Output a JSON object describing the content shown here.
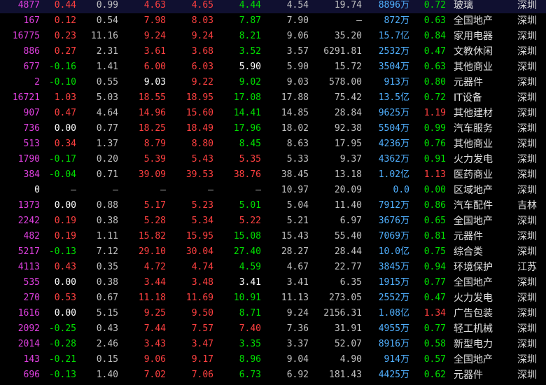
{
  "rows": [
    {
      "vol": "4877",
      "chg": "0.44",
      "turn": "0.99",
      "open": "4.63",
      "high": "4.65",
      "low": "4.44",
      "prev": "4.54",
      "pe": "19.74",
      "cap": "8896万",
      "ratio": "0.72",
      "industry": "玻璃",
      "region": "深圳"
    },
    {
      "vol": "167",
      "chg": "0.12",
      "turn": "0.54",
      "open": "7.98",
      "high": "8.03",
      "low": "7.87",
      "prev": "7.90",
      "pe": "–",
      "cap": "872万",
      "ratio": "0.63",
      "industry": "全国地产",
      "region": "深圳"
    },
    {
      "vol": "16775",
      "chg": "0.23",
      "turn": "11.16",
      "open": "9.24",
      "high": "9.24",
      "low": "8.21",
      "prev": "9.06",
      "pe": "35.20",
      "cap": "15.7亿",
      "ratio": "0.84",
      "industry": "家用电器",
      "region": "深圳"
    },
    {
      "vol": "886",
      "chg": "0.27",
      "turn": "2.31",
      "open": "3.61",
      "high": "3.68",
      "low": "3.52",
      "prev": "3.57",
      "pe": "6291.81",
      "cap": "2532万",
      "ratio": "0.47",
      "industry": "文教休闲",
      "region": "深圳"
    },
    {
      "vol": "677",
      "chg": "-0.16",
      "turn": "1.41",
      "open": "6.00",
      "high": "6.03",
      "low": "5.90",
      "prev": "5.90",
      "pe": "15.72",
      "cap": "3504万",
      "ratio": "0.63",
      "industry": "其他商业",
      "region": "深圳"
    },
    {
      "vol": "2",
      "chg": "-0.10",
      "turn": "0.55",
      "open": "9.03",
      "high": "9.22",
      "low": "9.02",
      "prev": "9.03",
      "pe": "578.00",
      "cap": "913万",
      "ratio": "0.80",
      "industry": "元器件",
      "region": "深圳"
    },
    {
      "vol": "16721",
      "chg": "1.03",
      "turn": "5.03",
      "open": "18.55",
      "high": "18.95",
      "low": "17.08",
      "prev": "17.88",
      "pe": "75.42",
      "cap": "13.5亿",
      "ratio": "0.72",
      "industry": "IT设备",
      "region": "深圳"
    },
    {
      "vol": "907",
      "chg": "0.47",
      "turn": "4.64",
      "open": "14.96",
      "high": "15.60",
      "low": "14.41",
      "prev": "14.85",
      "pe": "28.84",
      "cap": "9625万",
      "ratio": "1.19",
      "industry": "其他建材",
      "region": "深圳"
    },
    {
      "vol": "736",
      "chg": "0.00",
      "turn": "0.77",
      "open": "18.25",
      "high": "18.49",
      "low": "17.96",
      "prev": "18.02",
      "pe": "92.38",
      "cap": "5504万",
      "ratio": "0.99",
      "industry": "汽车服务",
      "region": "深圳"
    },
    {
      "vol": "513",
      "chg": "0.34",
      "turn": "1.37",
      "open": "8.79",
      "high": "8.80",
      "low": "8.45",
      "prev": "8.63",
      "pe": "17.95",
      "cap": "4236万",
      "ratio": "0.76",
      "industry": "其他商业",
      "region": "深圳"
    },
    {
      "vol": "1790",
      "chg": "-0.17",
      "turn": "0.20",
      "open": "5.39",
      "high": "5.43",
      "low": "5.35",
      "prev": "5.33",
      "pe": "9.37",
      "cap": "4362万",
      "ratio": "0.91",
      "industry": "火力发电",
      "region": "深圳"
    },
    {
      "vol": "384",
      "chg": "-0.04",
      "turn": "0.71",
      "open": "39.09",
      "high": "39.53",
      "low": "38.76",
      "prev": "38.45",
      "pe": "13.18",
      "cap": "1.02亿",
      "ratio": "1.13",
      "industry": "医药商业",
      "region": "深圳"
    },
    {
      "vol": "0",
      "chg": "–",
      "turn": "–",
      "open": "–",
      "high": "–",
      "low": "–",
      "prev": "10.97",
      "pe": "20.09",
      "cap": "0.0",
      "ratio": "0.00",
      "industry": "区域地产",
      "region": "深圳"
    },
    {
      "vol": "1373",
      "chg": "0.00",
      "turn": "0.88",
      "open": "5.17",
      "high": "5.23",
      "low": "5.01",
      "prev": "5.04",
      "pe": "11.40",
      "cap": "7912万",
      "ratio": "0.86",
      "industry": "汽车配件",
      "region": "吉林"
    },
    {
      "vol": "2242",
      "chg": "0.19",
      "turn": "0.38",
      "open": "5.28",
      "high": "5.34",
      "low": "5.22",
      "prev": "5.21",
      "pe": "6.97",
      "cap": "3676万",
      "ratio": "0.65",
      "industry": "全国地产",
      "region": "深圳"
    },
    {
      "vol": "482",
      "chg": "0.19",
      "turn": "1.11",
      "open": "15.82",
      "high": "15.95",
      "low": "15.08",
      "prev": "15.43",
      "pe": "55.40",
      "cap": "7069万",
      "ratio": "0.81",
      "industry": "元器件",
      "region": "深圳"
    },
    {
      "vol": "5217",
      "chg": "-0.13",
      "turn": "7.12",
      "open": "29.10",
      "high": "30.04",
      "low": "27.40",
      "prev": "28.27",
      "pe": "28.44",
      "cap": "10.0亿",
      "ratio": "0.75",
      "industry": "综合类",
      "region": "深圳"
    },
    {
      "vol": "4113",
      "chg": "0.43",
      "turn": "0.35",
      "open": "4.72",
      "high": "4.74",
      "low": "4.59",
      "prev": "4.67",
      "pe": "22.77",
      "cap": "3845万",
      "ratio": "0.94",
      "industry": "环境保护",
      "region": "江苏"
    },
    {
      "vol": "535",
      "chg": "0.00",
      "turn": "0.38",
      "open": "3.44",
      "high": "3.48",
      "low": "3.41",
      "prev": "3.41",
      "pe": "6.35",
      "cap": "1915万",
      "ratio": "0.77",
      "industry": "全国地产",
      "region": "深圳"
    },
    {
      "vol": "270",
      "chg": "0.53",
      "turn": "0.67",
      "open": "11.18",
      "high": "11.69",
      "low": "10.91",
      "prev": "11.13",
      "pe": "273.05",
      "cap": "2552万",
      "ratio": "0.47",
      "industry": "火力发电",
      "region": "深圳"
    },
    {
      "vol": "1616",
      "chg": "0.00",
      "turn": "5.15",
      "open": "9.25",
      "high": "9.50",
      "low": "8.71",
      "prev": "9.24",
      "pe": "2156.31",
      "cap": "1.08亿",
      "ratio": "1.34",
      "industry": "广告包装",
      "region": "深圳"
    },
    {
      "vol": "2092",
      "chg": "-0.25",
      "turn": "0.43",
      "open": "7.44",
      "high": "7.57",
      "low": "7.40",
      "prev": "7.36",
      "pe": "31.91",
      "cap": "4955万",
      "ratio": "0.77",
      "industry": "轻工机械",
      "region": "深圳"
    },
    {
      "vol": "2014",
      "chg": "-0.28",
      "turn": "2.46",
      "open": "3.43",
      "high": "3.47",
      "low": "3.35",
      "prev": "3.37",
      "pe": "52.07",
      "cap": "8916万",
      "ratio": "0.58",
      "industry": "新型电力",
      "region": "深圳"
    },
    {
      "vol": "143",
      "chg": "-0.21",
      "turn": "0.15",
      "open": "9.06",
      "high": "9.17",
      "low": "8.96",
      "prev": "9.04",
      "pe": "4.90",
      "cap": "914万",
      "ratio": "0.57",
      "industry": "全国地产",
      "region": "深圳"
    },
    {
      "vol": "696",
      "chg": "-0.13",
      "turn": "1.40",
      "open": "7.02",
      "high": "7.06",
      "low": "6.73",
      "prev": "6.92",
      "pe": "181.43",
      "cap": "4425万",
      "ratio": "0.62",
      "industry": "元器件",
      "region": "深圳"
    }
  ],
  "colors": {
    "up": "#ff4040",
    "down": "#00e000",
    "flat": "#ffffff",
    "volume": "#e040e0",
    "cap": "#50b0ff"
  }
}
